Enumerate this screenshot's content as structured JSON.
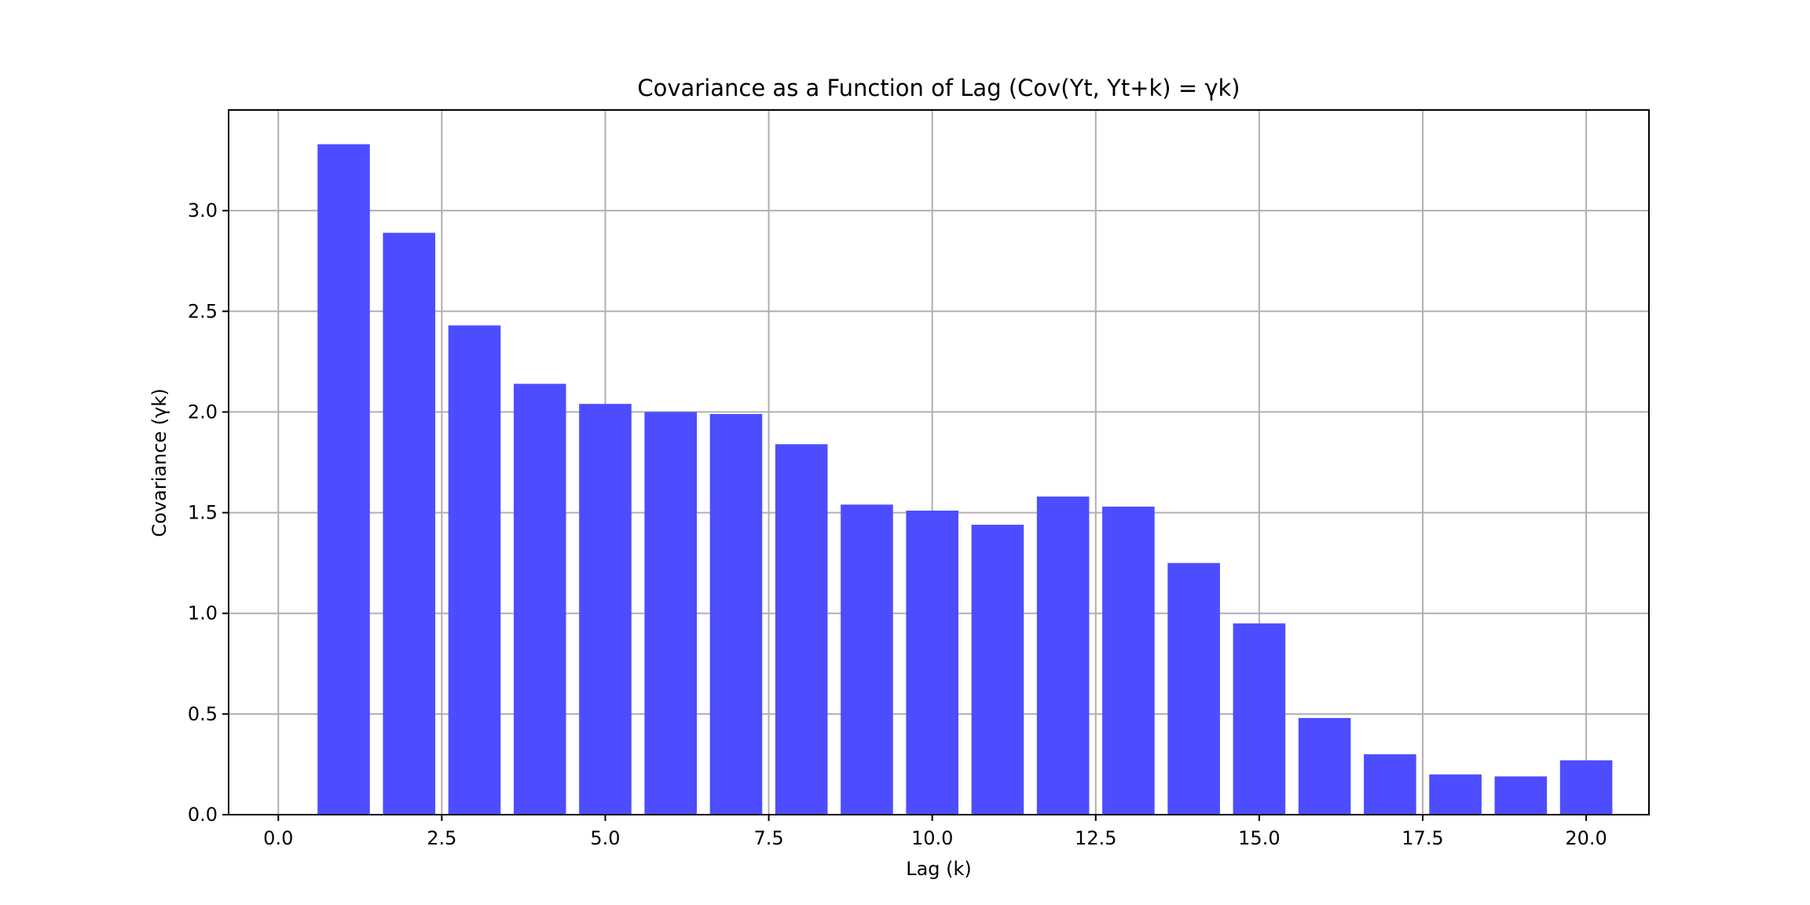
{
  "chart_data": {
    "type": "bar",
    "title": "Covariance as a Function of Lag (Cov(Yt, Yt+k) = γk)",
    "xlabel": "Lag (k)",
    "ylabel": "Covariance (γk)",
    "x": [
      1,
      2,
      3,
      4,
      5,
      6,
      7,
      8,
      9,
      10,
      11,
      12,
      13,
      14,
      15,
      16,
      17,
      18,
      19,
      20
    ],
    "values": [
      3.33,
      2.89,
      2.43,
      2.14,
      2.04,
      2.0,
      1.99,
      1.84,
      1.54,
      1.51,
      1.44,
      1.58,
      1.53,
      1.25,
      0.95,
      0.48,
      0.3,
      0.2,
      0.19,
      0.27
    ],
    "bar_width": 0.8,
    "xlim": [
      -0.76,
      20.96
    ],
    "ylim": [
      0,
      3.5
    ],
    "xticks": [
      0.0,
      2.5,
      5.0,
      7.5,
      10.0,
      12.5,
      15.0,
      17.5,
      20.0
    ],
    "xtick_labels": [
      "0.0",
      "2.5",
      "5.0",
      "7.5",
      "10.0",
      "12.5",
      "15.0",
      "17.5",
      "20.0"
    ],
    "yticks": [
      0.0,
      0.5,
      1.0,
      1.5,
      2.0,
      2.5,
      3.0
    ],
    "ytick_labels": [
      "0.0",
      "0.5",
      "1.0",
      "1.5",
      "2.0",
      "2.5",
      "3.0"
    ],
    "grid": true,
    "bar_color": "#4d4dff"
  }
}
